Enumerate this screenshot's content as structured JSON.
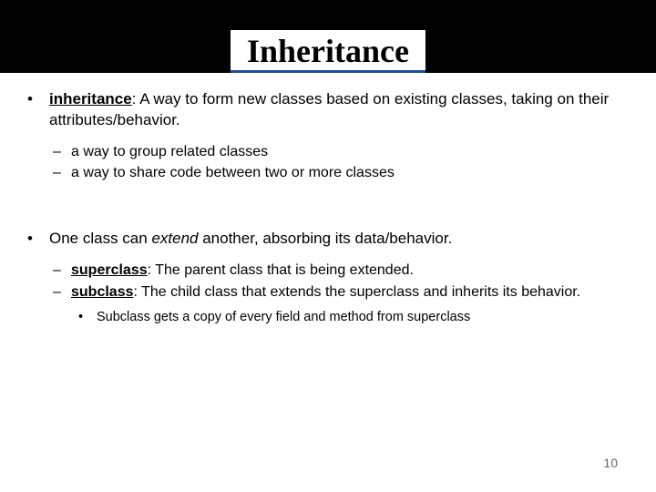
{
  "title": "Inheritance",
  "pageNumber": "10",
  "b1_term": "inheritance",
  "b1_rest": ": A way to form new classes based on existing classes, taking on their attributes/behavior.",
  "b1a": "a way to group related classes",
  "b1b": "a way to share code between two or more classes",
  "b2_pre": "One class can ",
  "b2_em": "extend",
  "b2_post": " another, absorbing its data/behavior.",
  "b2a_term": "superclass",
  "b2a_rest": ": The parent class that is being extended.",
  "b2b_term": "subclass",
  "b2b_rest": ": The child class that extends the superclass and inherits its behavior.",
  "b2b_i": "Subclass gets a copy of every field and method from superclass"
}
